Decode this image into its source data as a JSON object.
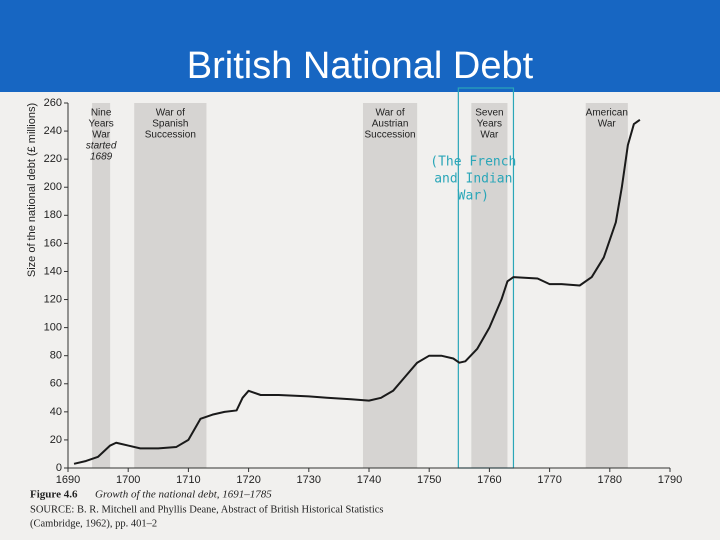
{
  "chart_data": {
    "type": "line",
    "title": "British National Debt",
    "ylabel": "Size of the national debt (£ millions)",
    "x": [
      1691,
      1693,
      1695,
      1697,
      1698,
      1700,
      1702,
      1705,
      1708,
      1710,
      1712,
      1714,
      1716,
      1718,
      1719,
      1720,
      1722,
      1725,
      1730,
      1733,
      1737,
      1740,
      1742,
      1744,
      1746,
      1748,
      1750,
      1752,
      1754,
      1755,
      1756,
      1758,
      1760,
      1762,
      1763,
      1764,
      1768,
      1770,
      1772,
      1775,
      1777,
      1779,
      1781,
      1782,
      1783,
      1784,
      1785
    ],
    "series": [
      {
        "color": "#1a1a1a",
        "values": [
          3,
          5,
          8,
          16,
          18,
          16,
          14,
          14,
          15,
          20,
          35,
          38,
          40,
          41,
          50,
          55,
          52,
          52,
          51,
          50,
          49,
          48,
          50,
          55,
          65,
          75,
          80,
          80,
          78,
          75,
          76,
          85,
          100,
          120,
          133,
          136,
          135,
          131,
          131,
          130,
          136,
          150,
          175,
          200,
          230,
          245,
          248
        ]
      }
    ],
    "xlim": [
      1690,
      1790
    ],
    "xticks": [
      1690,
      1700,
      1710,
      1720,
      1730,
      1740,
      1750,
      1760,
      1770,
      1780,
      1790
    ],
    "ylim": [
      0,
      260
    ],
    "yticks": [
      0,
      20,
      40,
      60,
      80,
      100,
      120,
      140,
      160,
      180,
      200,
      220,
      240,
      260
    ],
    "periods": [
      {
        "label": [
          "Nine",
          "Years",
          "War"
        ],
        "note": [
          "started",
          "1689"
        ],
        "start": 1694,
        "end": 1697
      },
      {
        "label": [
          "War of",
          "Spanish",
          "Succession"
        ],
        "start": 1701,
        "end": 1713
      },
      {
        "label": [
          "War of",
          "Austrian",
          "Succession"
        ],
        "start": 1739,
        "end": 1748
      },
      {
        "label": [
          "Seven",
          "Years",
          "War"
        ],
        "start": 1757,
        "end": 1763,
        "highlight": true
      },
      {
        "label": [
          "American",
          "War"
        ],
        "start": 1776,
        "end": 1783
      }
    ],
    "annotation": [
      "(The French",
      "and Indian",
      "War)"
    ],
    "caption": {
      "figure": "Figure 4.6",
      "text": "Growth of the national debt, 1691–1785",
      "source": "SOURCE: B. R. Mitchell and Phyllis Deane, Abstract of British Historical Statistics",
      "source2": "(Cambridge, 1962), pp. 401–2"
    }
  }
}
